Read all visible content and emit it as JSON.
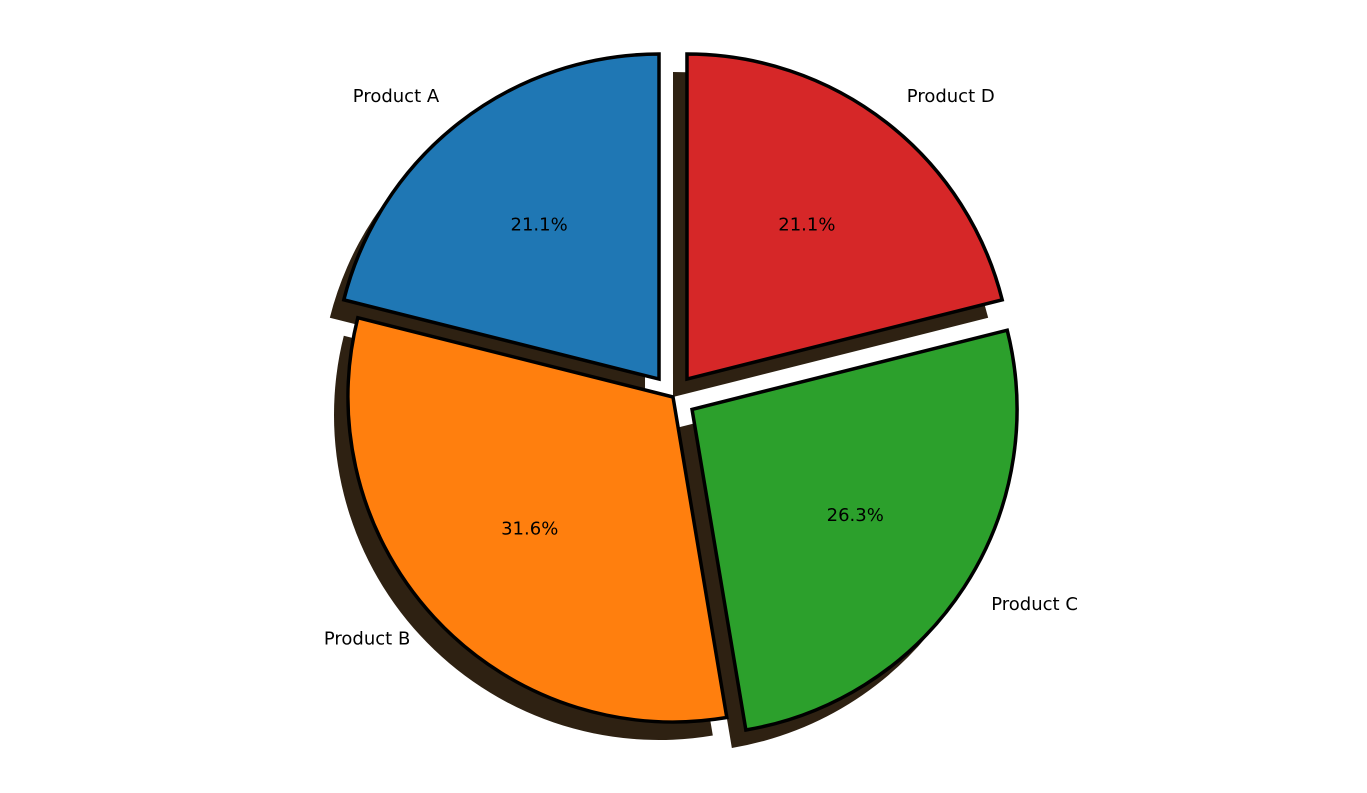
{
  "chart_data": {
    "type": "pie",
    "title": "",
    "categories": [
      "Product A",
      "Product B",
      "Product C",
      "Product D"
    ],
    "values": [
      21.1,
      31.6,
      26.3,
      21.1
    ],
    "percent_labels": [
      "21.1%",
      "31.6%",
      "26.3%",
      "21.1%"
    ],
    "colors": [
      "#1f77b4",
      "#ff7f0e",
      "#2ca02c",
      "#d62728"
    ],
    "exploded": [
      true,
      false,
      true,
      true
    ],
    "shadow": true,
    "start_angle_deg": 90,
    "direction": "counterclockwise",
    "legend": "none"
  }
}
